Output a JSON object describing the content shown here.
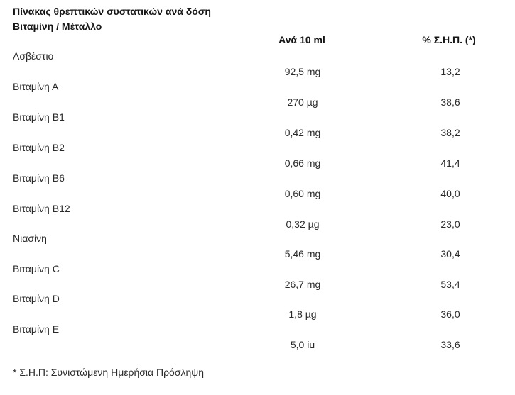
{
  "header": {
    "title_line1": "Πίνακας θρεπτικών συστατικών ανά δόση",
    "title_line2": "Βιταμίνη / Μέταλλο",
    "col_amount": "Ανά 10 ml",
    "col_percent": "% Σ.Η.Π. (*)"
  },
  "rows": [
    {
      "name": "Ασβέστιο",
      "amount": "92,5 mg",
      "percent": "13,2"
    },
    {
      "name": "Βιταμίνη Α",
      "amount": "270 µg",
      "percent": "38,6"
    },
    {
      "name": "Βιταμίνη Β1",
      "amount": "0,42 mg",
      "percent": "38,2"
    },
    {
      "name": "Βιταμίνη Β2",
      "amount": "0,66 mg",
      "percent": "41,4"
    },
    {
      "name": "Βιταμίνη Β6",
      "amount": "0,60 mg",
      "percent": "40,0"
    },
    {
      "name": "Βιταμίνη Β12",
      "amount": "0,32 µg",
      "percent": "23,0"
    },
    {
      "name": "Νιασίνη",
      "amount": "5,46 mg",
      "percent": "30,4"
    },
    {
      "name": "Βιταμίνη C",
      "amount": "26,7 mg",
      "percent": "53,4"
    },
    {
      "name": "Βιταμίνη D",
      "amount": "1,8 µg",
      "percent": "36,0"
    },
    {
      "name": "Βιταμίνη Ε",
      "amount": "5,0 iu",
      "percent": "33,6"
    }
  ],
  "footnote": "* Σ.Η.Π: Συνιστώμενη Ημερήσια Πρόσληψη"
}
